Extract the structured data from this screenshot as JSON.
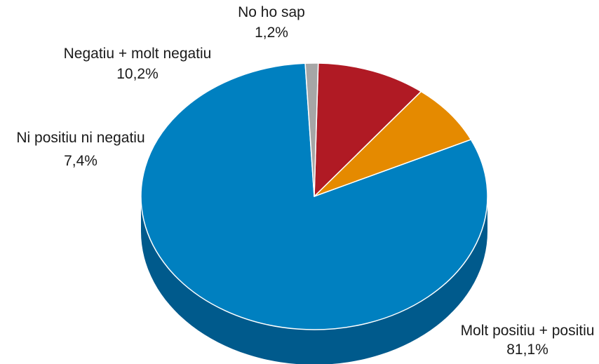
{
  "chart_data": {
    "type": "pie",
    "style": "3d",
    "slices": [
      {
        "label": "Molt positiu + positiu",
        "value_label": "81,1%",
        "value": 81.1,
        "color": "#0080c0",
        "side_color": "#005a8c"
      },
      {
        "label": "Ni positiu ni negatiu",
        "value_label": "7,4%",
        "value": 7.4,
        "color": "#e58a00",
        "side_color": "#a86400"
      },
      {
        "label": "Negatiu + molt negatiu",
        "value_label": "10,2%",
        "value": 10.2,
        "color": "#b01a24",
        "side_color": "#7a1018"
      },
      {
        "label": "No ho sap",
        "value_label": "1,2%",
        "value": 1.2,
        "color": "#a6a6a6",
        "side_color": "#707070"
      }
    ],
    "legend": "none"
  }
}
